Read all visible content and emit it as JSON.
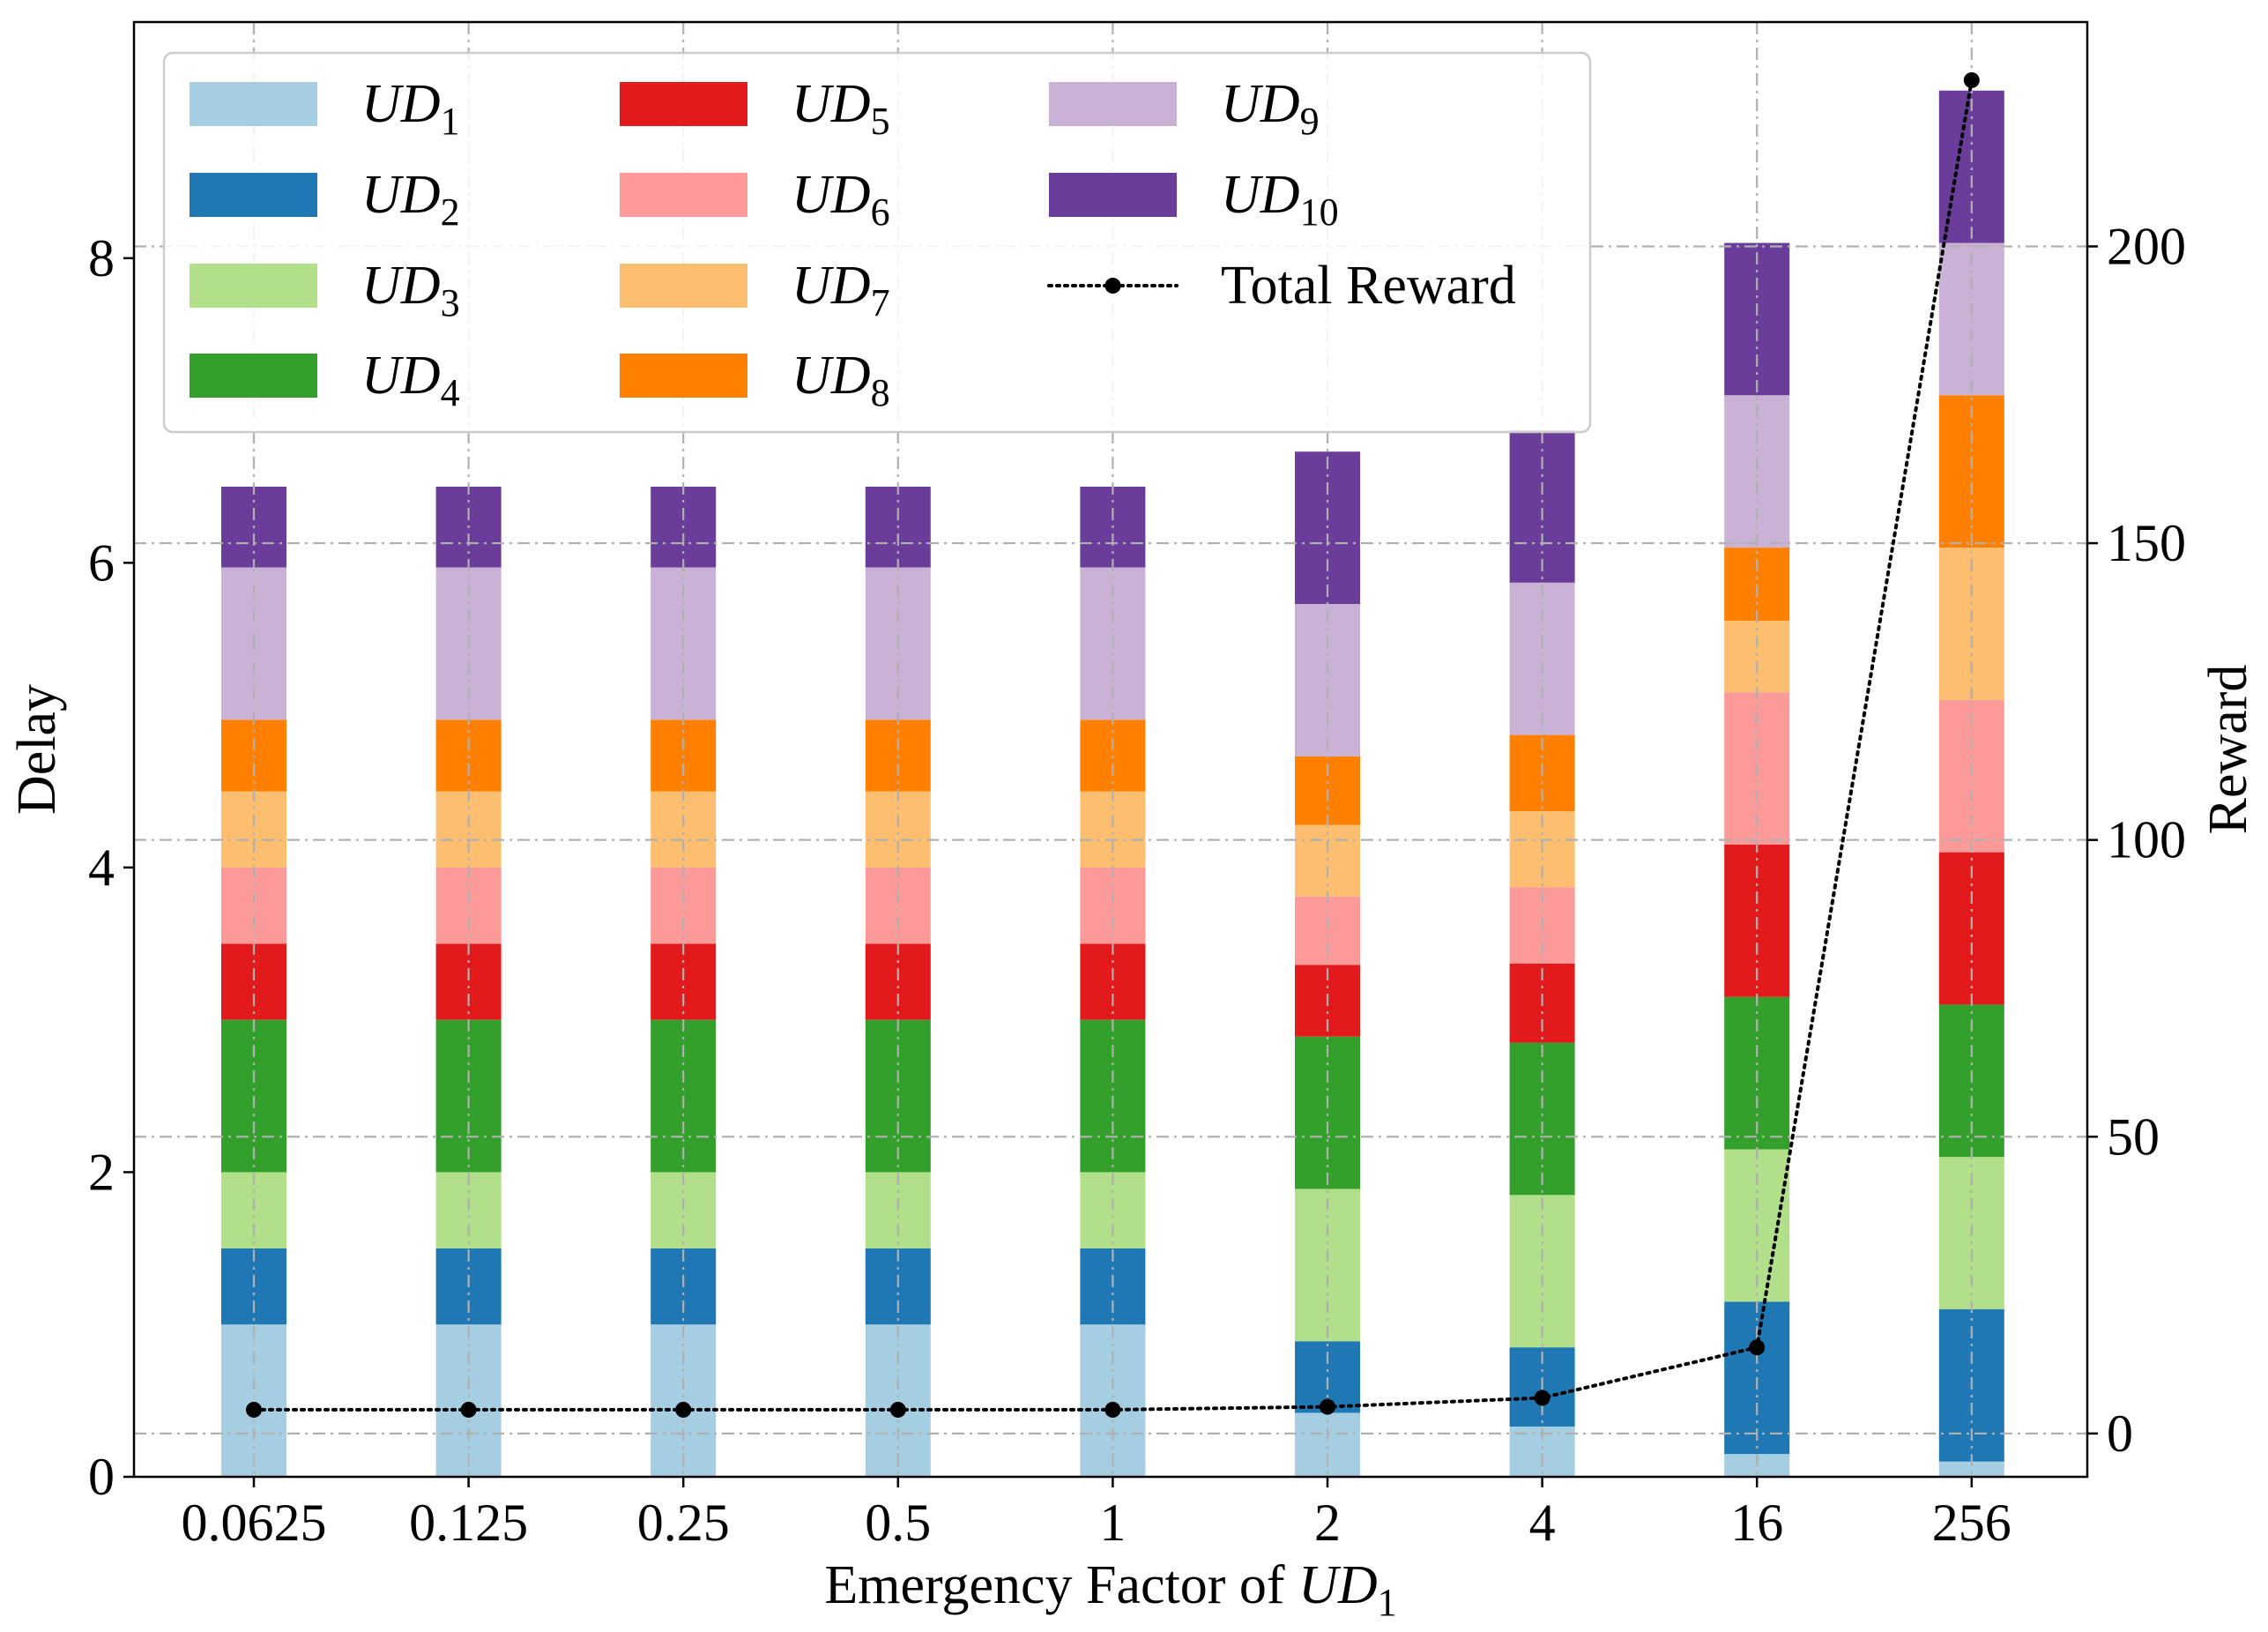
{
  "chart_data": {
    "type": "bar",
    "stacked": true,
    "title": "",
    "xlabel_prefix": "Emergency Factor of ",
    "xlabel_math": "UD",
    "xlabel_sub": "1",
    "ylabel": "Delay",
    "y2label": "Reward",
    "categories": [
      "0.0625",
      "0.125",
      "0.25",
      "0.5",
      "1",
      "2",
      "4",
      "16",
      "256"
    ],
    "ylim": [
      0,
      9.55
    ],
    "yticks": [
      0,
      2,
      4,
      6,
      8
    ],
    "y2lim": [
      -7.3,
      237.8
    ],
    "y2ticks": [
      0,
      50,
      100,
      150,
      200
    ],
    "grid": true,
    "legend_position": "top-left",
    "series": [
      {
        "name": "UD",
        "sub": "1",
        "color": "#a6cee3",
        "values": [
          1.0,
          1.0,
          1.0,
          1.0,
          1.0,
          0.42,
          0.33,
          0.15,
          0.1
        ]
      },
      {
        "name": "UD",
        "sub": "2",
        "color": "#1f78b4",
        "values": [
          0.5,
          0.5,
          0.5,
          0.5,
          0.5,
          0.47,
          0.52,
          1.0,
          1.0
        ]
      },
      {
        "name": "UD",
        "sub": "3",
        "color": "#b2df8a",
        "values": [
          0.5,
          0.5,
          0.5,
          0.5,
          0.5,
          1.0,
          1.0,
          1.0,
          1.0
        ]
      },
      {
        "name": "UD",
        "sub": "4",
        "color": "#33a02c",
        "values": [
          1.0,
          1.0,
          1.0,
          1.0,
          1.0,
          1.0,
          1.0,
          1.0,
          1.0
        ]
      },
      {
        "name": "UD",
        "sub": "5",
        "color": "#e31a1c",
        "values": [
          0.5,
          0.5,
          0.5,
          0.5,
          0.5,
          0.47,
          0.52,
          1.0,
          1.0
        ]
      },
      {
        "name": "UD",
        "sub": "6",
        "color": "#fb9a99",
        "values": [
          0.5,
          0.5,
          0.5,
          0.5,
          0.5,
          0.45,
          0.5,
          1.0,
          1.0
        ]
      },
      {
        "name": "UD",
        "sub": "7",
        "color": "#fdbf6f",
        "values": [
          0.5,
          0.5,
          0.5,
          0.5,
          0.5,
          0.47,
          0.5,
          0.47,
          1.0
        ]
      },
      {
        "name": "UD",
        "sub": "8",
        "color": "#ff7f00",
        "values": [
          0.47,
          0.47,
          0.47,
          0.47,
          0.47,
          0.45,
          0.5,
          0.48,
          1.0
        ]
      },
      {
        "name": "UD",
        "sub": "9",
        "color": "#cab2d6",
        "values": [
          1.0,
          1.0,
          1.0,
          1.0,
          1.0,
          1.0,
          1.0,
          1.0,
          1.0
        ]
      },
      {
        "name": "UD",
        "sub": "10",
        "color": "#6a3d9a",
        "values": [
          0.53,
          0.53,
          0.53,
          0.53,
          0.53,
          1.0,
          1.0,
          1.0,
          1.0
        ]
      }
    ],
    "line_series": {
      "name": "Total Reward",
      "axis": "right",
      "color": "#000000",
      "style": "dotted",
      "marker": "circle",
      "values": [
        4.0,
        4.0,
        4.0,
        4.0,
        4.0,
        4.5,
        6.0,
        14.5,
        228.0
      ]
    }
  }
}
